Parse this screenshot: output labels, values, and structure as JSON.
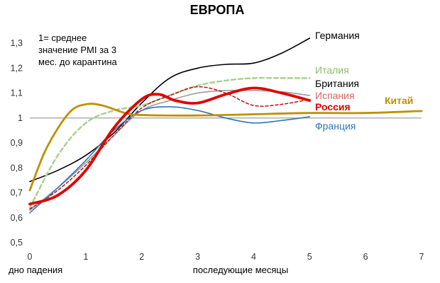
{
  "chart_data": {
    "type": "line",
    "title": "ЕВРОПА",
    "note": [
      "1= среднее",
      "значение PMI за 3",
      "мес. до карантина"
    ],
    "xlabel_left": "дно падения",
    "xlabel": "последующие месяцы",
    "ylabel": "",
    "xlim": [
      0,
      7
    ],
    "ylim": [
      0.5,
      1.35
    ],
    "x_ticks": [
      0,
      1,
      2,
      3,
      4,
      5,
      6,
      7
    ],
    "y_ticks": [
      0.5,
      0.6,
      0.7,
      0.8,
      0.9,
      1.0,
      1.1,
      1.2,
      1.3
    ],
    "y_tick_labels": [
      "0,5",
      "0,6",
      "0,7",
      "0,8",
      "0,9",
      "1",
      "1,1",
      "1,2",
      "1,3"
    ],
    "reference_line": 1.0,
    "grid": false,
    "series": [
      {
        "name": "Германия",
        "color": "#000000",
        "width": 1.6,
        "dash": "",
        "x": [
          0,
          0.5,
          1,
          1.5,
          2,
          2.5,
          3,
          3.5,
          4,
          4.5,
          5
        ],
        "y": [
          0.745,
          0.79,
          0.85,
          0.94,
          1.06,
          1.16,
          1.2,
          1.215,
          1.22,
          1.26,
          1.32
        ]
      },
      {
        "name": "Италия",
        "color": "#a9d18e",
        "width": 2.5,
        "dash": "6,4",
        "x": [
          0,
          0.5,
          1,
          1.5,
          2,
          2.5,
          3,
          3.5,
          4,
          4.5,
          5
        ],
        "y": [
          0.64,
          0.85,
          0.98,
          1.03,
          1.05,
          1.09,
          1.13,
          1.15,
          1.16,
          1.16,
          1.16
        ]
      },
      {
        "name": "Британия",
        "color": "#999999",
        "width": 1.6,
        "dash": "",
        "x": [
          0,
          0.5,
          1,
          1.5,
          2,
          2.5,
          3,
          3.5,
          4,
          4.5,
          5
        ],
        "y": [
          0.63,
          0.72,
          0.82,
          0.93,
          1.03,
          1.07,
          1.1,
          1.11,
          1.11,
          1.105,
          1.09
        ]
      },
      {
        "name": "Испания",
        "color": "#c00000",
        "width": 1.4,
        "dash": "4,3",
        "x": [
          0,
          0.5,
          1,
          1.5,
          2,
          2.5,
          3,
          3.5,
          4,
          4.5,
          5
        ],
        "y": [
          0.635,
          0.71,
          0.81,
          0.93,
          1.04,
          1.09,
          1.125,
          1.1,
          1.05,
          1.055,
          1.075
        ]
      },
      {
        "name": "Франция",
        "color": "#2e75b6",
        "width": 1.6,
        "dash": "",
        "x": [
          0,
          0.5,
          1,
          1.5,
          2,
          2.5,
          3,
          3.5,
          4,
          4.5,
          5
        ],
        "y": [
          0.62,
          0.72,
          0.83,
          0.95,
          1.03,
          1.045,
          1.03,
          1.0,
          0.98,
          0.99,
          1.005
        ]
      },
      {
        "name": "Китай",
        "color": "#bf9000",
        "width": 2.8,
        "dash": "",
        "x": [
          0,
          0.3,
          0.7,
          1,
          1.3,
          1.7,
          2,
          3,
          4,
          5,
          6,
          7
        ],
        "y": [
          0.71,
          0.88,
          1.02,
          1.055,
          1.05,
          1.02,
          1.012,
          1.01,
          1.015,
          1.02,
          1.02,
          1.028
        ]
      },
      {
        "name": "Россия",
        "color": "#e00000",
        "width": 3.8,
        "dash": "",
        "x": [
          0,
          0.5,
          1,
          1.5,
          2,
          2.3,
          2.6,
          3,
          3.5,
          4,
          4.5,
          5
        ],
        "y": [
          0.655,
          0.69,
          0.79,
          0.96,
          1.075,
          1.095,
          1.07,
          1.06,
          1.095,
          1.12,
          1.1,
          1.07
        ]
      }
    ],
    "series_labels": [
      {
        "text": "Германия",
        "color": "#000000",
        "bold": false
      },
      {
        "text": "Италия",
        "color": "#8dbb6e",
        "bold": false
      },
      {
        "text": "Британия",
        "color": "#000000",
        "bold": false
      },
      {
        "text": "Испания",
        "color": "#e06060",
        "bold": false
      },
      {
        "text": "Китай",
        "color": "#bf9000",
        "bold": true
      },
      {
        "text": "Россия",
        "color": "#e00000",
        "bold": true
      },
      {
        "text": "Франция",
        "color": "#2e75b6",
        "bold": false
      }
    ]
  }
}
